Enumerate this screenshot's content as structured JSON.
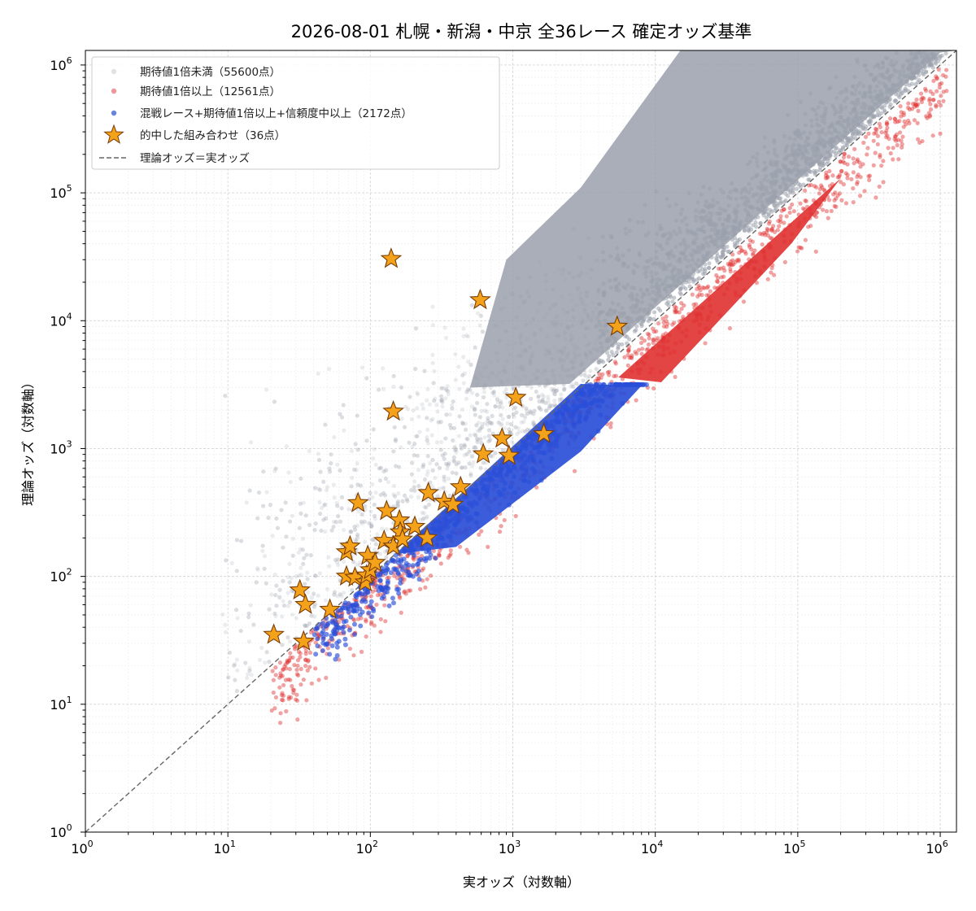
{
  "chart_data": {
    "type": "scatter",
    "title": "2026-08-01 札幌・新潟・中京 全36レース 確定オッズ基準",
    "xlabel": "実オッズ（対数軸）",
    "ylabel": "理論オッズ（対数軸）",
    "xscale": "log",
    "yscale": "log",
    "xlim": [
      1,
      1300000
    ],
    "ylim": [
      1,
      1300000
    ],
    "grid": true,
    "legend_position": "top-left",
    "xticks": [
      {
        "exp": "0",
        "base": "10"
      },
      {
        "exp": "1",
        "base": "10"
      },
      {
        "exp": "2",
        "base": "10"
      },
      {
        "exp": "3",
        "base": "10"
      },
      {
        "exp": "4",
        "base": "10"
      },
      {
        "exp": "5",
        "base": "10"
      },
      {
        "exp": "6",
        "base": "10"
      }
    ],
    "yticks": [
      {
        "exp": "0",
        "base": "10"
      },
      {
        "exp": "1",
        "base": "10"
      },
      {
        "exp": "2",
        "base": "10"
      },
      {
        "exp": "3",
        "base": "10"
      },
      {
        "exp": "4",
        "base": "10"
      },
      {
        "exp": "5",
        "base": "10"
      },
      {
        "exp": "6",
        "base": "10"
      }
    ],
    "series": [
      {
        "name": "期待値1倍未満（55600点）",
        "color": "#9aa0ab",
        "marker": "circle",
        "count": 55600
      },
      {
        "name": "期待値1倍以上（12561点）",
        "color": "#e03030",
        "marker": "circle",
        "count": 12561
      },
      {
        "name": "混戦レース+期待値1倍以上+信頼度中以上（2172点）",
        "color": "#2a4fd8",
        "marker": "circle",
        "count": 2172
      },
      {
        "name": "的中した組み合わせ（36点）",
        "color": "#f5a21b",
        "marker": "star",
        "count": 36,
        "points": [
          [
            21,
            35
          ],
          [
            34,
            31
          ],
          [
            32,
            78
          ],
          [
            35,
            60
          ],
          [
            52,
            55
          ],
          [
            68,
            100
          ],
          [
            68,
            155
          ],
          [
            72,
            172
          ],
          [
            78,
            98
          ],
          [
            82,
            375
          ],
          [
            92,
            90
          ],
          [
            94,
            102
          ],
          [
            96,
            145
          ],
          [
            100,
            112
          ],
          [
            108,
            128
          ],
          [
            125,
            190
          ],
          [
            130,
            325
          ],
          [
            145,
            172
          ],
          [
            160,
            275
          ],
          [
            162,
            222
          ],
          [
            168,
            195
          ],
          [
            205,
            245
          ],
          [
            250,
            200
          ],
          [
            255,
            450
          ],
          [
            330,
            385
          ],
          [
            380,
            365
          ],
          [
            140,
            30500
          ],
          [
            145,
            1950
          ],
          [
            590,
            14500
          ],
          [
            620,
            905
          ],
          [
            840,
            1200
          ],
          [
            940,
            880
          ],
          [
            1050,
            2500
          ],
          [
            1650,
            1300
          ],
          [
            5400,
            9000
          ],
          [
            430,
            500
          ]
        ]
      }
    ],
    "reference_line": {
      "name": "理論オッズ＝実オッズ",
      "color": "#666666",
      "style": "dashed"
    }
  }
}
